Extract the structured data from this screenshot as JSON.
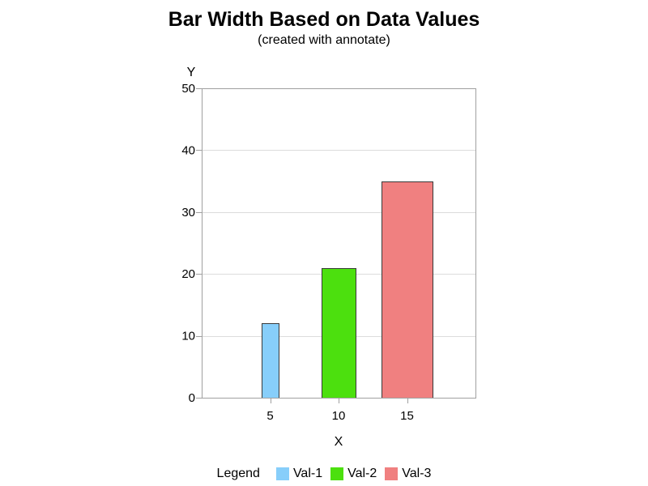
{
  "chart_data": {
    "type": "bar",
    "title": "Bar Width Based on Data Values",
    "subtitle": "(created with annotate)",
    "xlabel": "X",
    "ylabel": "Y",
    "x": [
      5,
      10,
      15
    ],
    "xlim": [
      0,
      20
    ],
    "ylim": [
      0,
      50
    ],
    "y_ticks": [
      0,
      10,
      20,
      30,
      40,
      50
    ],
    "x_ticks": [
      5,
      10,
      15
    ],
    "grid": true,
    "bar_width_from": "x value",
    "series": [
      {
        "name": "Val-1",
        "x": 5,
        "y": 12,
        "color": "#87cefa"
      },
      {
        "name": "Val-2",
        "x": 10,
        "y": 21,
        "color": "#4ce00e"
      },
      {
        "name": "Val-3",
        "x": 15,
        "y": 35,
        "color": "#f08080"
      }
    ],
    "legend": {
      "title": "Legend",
      "placement": "bottom"
    }
  }
}
